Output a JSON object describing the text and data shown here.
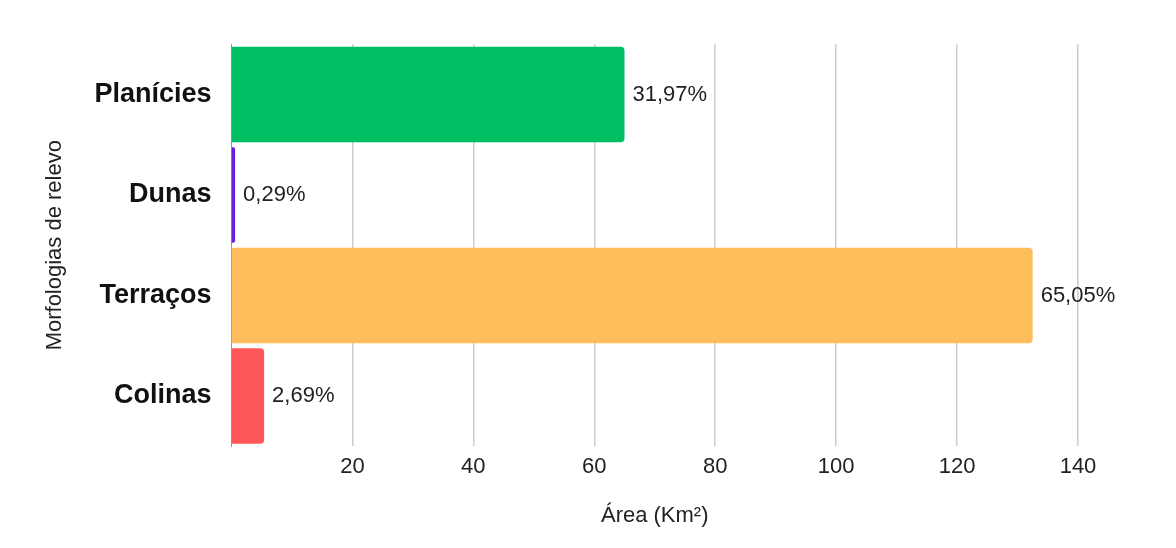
{
  "chart_data": {
    "type": "bar",
    "orientation": "horizontal",
    "xlabel": "Área (Km²)",
    "ylabel": "Morfologias de relevo",
    "categories": [
      "Planícies",
      "Dunas",
      "Terraços",
      "Colinas"
    ],
    "values": [
      65,
      0.6,
      132.5,
      5.4
    ],
    "colors": [
      "#00bf63",
      "#6a1fe0",
      "#ffbe5c",
      "#ff5757"
    ],
    "annotations": [
      {
        "text": "31,97%",
        "x": 65,
        "y": "Planícies"
      },
      {
        "text": "0,29%",
        "x": 0.6,
        "y": "Dunas"
      },
      {
        "text": "65,05%",
        "x": 132.5,
        "y": "Terraços"
      },
      {
        "text": "2,69%",
        "x": 5.4,
        "y": "Colinas"
      }
    ],
    "xlim": [
      0,
      140
    ],
    "xticks": [
      20,
      40,
      60,
      80,
      100,
      120,
      140
    ],
    "grid": "x",
    "legend": false
  }
}
